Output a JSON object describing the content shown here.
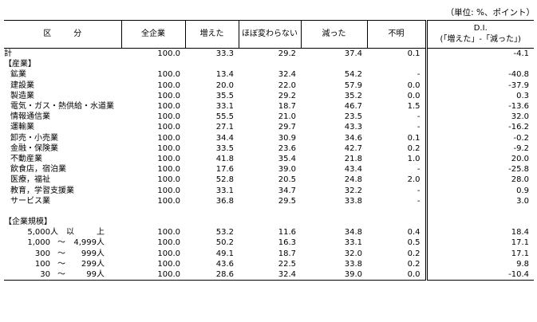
{
  "unit_note": "（単位: %、ポイント）",
  "headers": {
    "label": "区分",
    "total": "全企業",
    "increased": "増えた",
    "same": "ほぼ変わらない",
    "decreased": "減った",
    "unknown": "不明",
    "di_line1": "D.I.",
    "di_line2": "(「増えた」-「減った」)"
  },
  "total_row": {
    "label": "計",
    "total": "100.0",
    "increased": "33.3",
    "same": "29.2",
    "decreased": "37.4",
    "unknown": "0.1",
    "di": "-4.1"
  },
  "industry_heading": "【産業】",
  "industries": [
    {
      "label": "鉱業",
      "total": "100.0",
      "increased": "13.4",
      "same": "32.4",
      "decreased": "54.2",
      "unknown": "-",
      "di": "-40.8"
    },
    {
      "label": "建設業",
      "total": "100.0",
      "increased": "20.0",
      "same": "22.0",
      "decreased": "57.9",
      "unknown": "0.0",
      "di": "-37.9"
    },
    {
      "label": "製造業",
      "total": "100.0",
      "increased": "35.5",
      "same": "29.2",
      "decreased": "35.2",
      "unknown": "0.0",
      "di": "0.3"
    },
    {
      "label": "電気・ガス・熱供給・水道業",
      "total": "100.0",
      "increased": "33.1",
      "same": "18.7",
      "decreased": "46.7",
      "unknown": "1.5",
      "di": "-13.6"
    },
    {
      "label": "情報通信業",
      "total": "100.0",
      "increased": "55.5",
      "same": "21.0",
      "decreased": "23.5",
      "unknown": "-",
      "di": "32.0"
    },
    {
      "label": "運輸業",
      "total": "100.0",
      "increased": "27.1",
      "same": "29.7",
      "decreased": "43.3",
      "unknown": "-",
      "di": "-16.2"
    },
    {
      "label": "卸売・小売業",
      "total": "100.0",
      "increased": "34.4",
      "same": "30.9",
      "decreased": "34.6",
      "unknown": "0.1",
      "di": "-0.2"
    },
    {
      "label": "金融・保険業",
      "total": "100.0",
      "increased": "33.5",
      "same": "23.6",
      "decreased": "42.7",
      "unknown": "0.2",
      "di": "-9.2"
    },
    {
      "label": "不動産業",
      "total": "100.0",
      "increased": "41.8",
      "same": "35.4",
      "decreased": "21.8",
      "unknown": "1.0",
      "di": "20.0"
    },
    {
      "label": "飲食店，宿泊業",
      "total": "100.0",
      "increased": "17.6",
      "same": "39.0",
      "decreased": "43.4",
      "unknown": "-",
      "di": "-25.8"
    },
    {
      "label": "医療，福祉",
      "total": "100.0",
      "increased": "52.8",
      "same": "20.5",
      "decreased": "24.8",
      "unknown": "2.0",
      "di": "28.0"
    },
    {
      "label": "教育，学習支援業",
      "total": "100.0",
      "increased": "33.1",
      "same": "34.7",
      "decreased": "32.2",
      "unknown": "-",
      "di": "0.9"
    },
    {
      "label": "サービス業",
      "total": "100.0",
      "increased": "36.8",
      "same": "29.5",
      "decreased": "33.8",
      "unknown": "-",
      "di": "3.0"
    }
  ],
  "size_heading": "【企業規模】",
  "sizes": [
    {
      "from": "5,000",
      "sep": "人　以",
      "to": "上",
      "total": "100.0",
      "increased": "53.2",
      "same": "11.6",
      "decreased": "34.8",
      "unknown": "0.4",
      "di": "18.4"
    },
    {
      "from": "1,000",
      "sep": "～",
      "to": "4,999人",
      "total": "100.0",
      "increased": "50.2",
      "same": "16.3",
      "decreased": "33.1",
      "unknown": "0.5",
      "di": "17.1"
    },
    {
      "from": "300",
      "sep": "～",
      "to": "999人",
      "total": "100.0",
      "increased": "49.1",
      "same": "18.7",
      "decreased": "32.0",
      "unknown": "0.2",
      "di": "17.1"
    },
    {
      "from": "100",
      "sep": "～",
      "to": "299人",
      "total": "100.0",
      "increased": "43.6",
      "same": "22.5",
      "decreased": "33.8",
      "unknown": "0.2",
      "di": "9.8"
    },
    {
      "from": "30",
      "sep": "～",
      "to": "99人",
      "total": "100.0",
      "increased": "28.6",
      "same": "32.4",
      "decreased": "39.0",
      "unknown": "0.0",
      "di": "-10.4"
    }
  ]
}
